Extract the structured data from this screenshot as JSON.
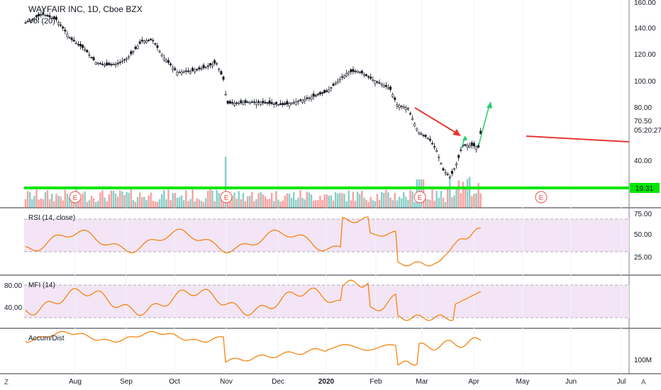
{
  "header": {
    "symbol_title": "WAYFAIR INC, 1D, Cboe BZX",
    "volume_label": "Vol (20)"
  },
  "panes": {
    "rsi_label": "RSI (14, close)",
    "mfi_label": "MFI (14)",
    "accum_label": "Accum/Dist"
  },
  "price_axis": {
    "ticks": [
      "160.00",
      "140.00",
      "120.00",
      "100.00",
      "80.00",
      "70.50",
      "40.00"
    ],
    "current_time": "05:20:27",
    "support_badge": "19.31"
  },
  "rsi_axis": {
    "ticks": [
      "75.00",
      "50.00",
      "25.00"
    ]
  },
  "mfi_axis": {
    "ticks": [
      "80.00",
      "40.00"
    ]
  },
  "ad_axis": {
    "ticks": [
      "100M"
    ]
  },
  "time_axis": {
    "ticks": [
      "Aug",
      "Sep",
      "Oct",
      "Nov",
      "Dec",
      "2020",
      "Feb",
      "Mar",
      "Apr",
      "May",
      "Jun",
      "Jul"
    ]
  },
  "corner_buttons": {
    "left": "Z",
    "right": "A"
  },
  "earnings_markers": [
    "E",
    "E",
    "E",
    "E"
  ],
  "colors": {
    "up": "#26a69a",
    "down": "#ef5350",
    "candle": "#131722",
    "rsi_line": "#f57c00",
    "band_fill": "#f3e5f5",
    "support_line": "#00e600",
    "red_arrow": "#e53935",
    "green_arrow": "#2ecc71"
  },
  "chart_data": {
    "type": "candlestick",
    "title": "WAYFAIR INC, 1D, Cboe BZX",
    "x": [
      "Jul",
      "Aug",
      "Sep",
      "Oct",
      "Nov",
      "Dec",
      "2020",
      "Feb",
      "Mar",
      "Apr"
    ],
    "close_approx": [
      148,
      120,
      128,
      112,
      84,
      86,
      100,
      82,
      30,
      70.5
    ],
    "ylim": [
      19.31,
      160
    ],
    "last_price": 70.5,
    "support_level": 19.31,
    "rsi": {
      "levels": [
        75,
        50,
        25
      ]
    },
    "mfi": {
      "levels": [
        80,
        40
      ]
    }
  }
}
